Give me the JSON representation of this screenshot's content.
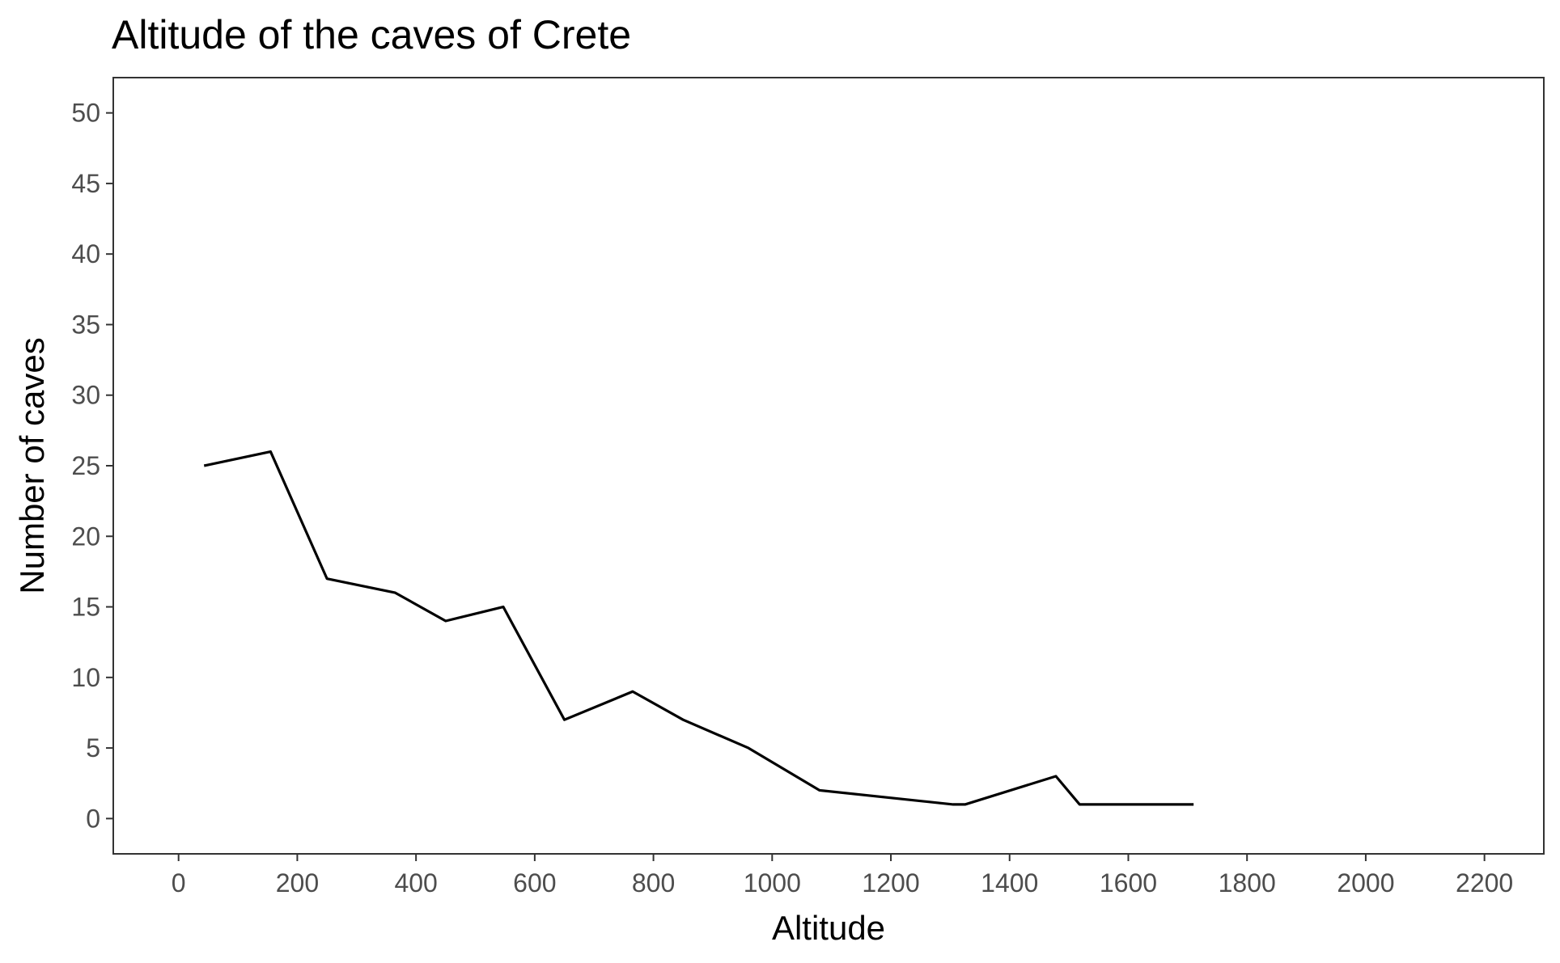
{
  "chart_data": {
    "type": "line",
    "title": "Altitude of the caves of Crete",
    "xlabel": "Altitude",
    "ylabel": "Number of caves",
    "xlim": [
      -110,
      2300
    ],
    "ylim": [
      -2.5,
      52.5
    ],
    "x_ticks": [
      0,
      200,
      400,
      600,
      800,
      1000,
      1200,
      1400,
      1600,
      1800,
      2000,
      2200
    ],
    "y_ticks": [
      0,
      5,
      10,
      15,
      20,
      25,
      30,
      35,
      40,
      45,
      50
    ],
    "grid": false,
    "legend": "none",
    "line_color": "#000000",
    "series": [
      {
        "x": [
          43,
          155,
          250,
          365,
          450,
          547,
          650,
          765,
          850,
          960,
          1080,
          1305,
          1325,
          1478,
          1518,
          1710
        ],
        "y": [
          25,
          26,
          17,
          16,
          14,
          15,
          7,
          9,
          7,
          5,
          2,
          1,
          1,
          3,
          1,
          1
        ]
      }
    ]
  }
}
